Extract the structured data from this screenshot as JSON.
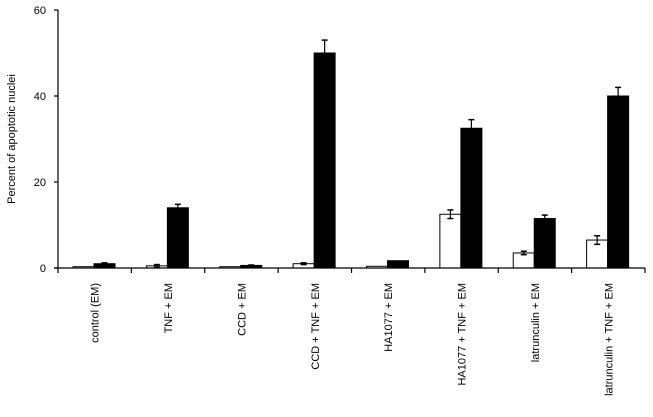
{
  "chart_data": {
    "type": "bar",
    "title": "",
    "xlabel": "",
    "ylabel": "Percent of apoptotic nuclei",
    "ylim": [
      0,
      60
    ],
    "yticks": [
      0,
      20,
      40,
      60
    ],
    "grid": false,
    "categories": [
      "control (EM)",
      "TNF + EM",
      "CCD + EM",
      "CCD + TNF + EM",
      "HA1077 + EM",
      "HA1077 + TNF + EM",
      "latrunculin + EM",
      "latrunculin + TNF + EM"
    ],
    "series": [
      {
        "color": "#ffffff",
        "values": [
          0.3,
          0.5,
          0.3,
          1.0,
          0.4,
          12.5,
          3.5,
          6.5
        ],
        "errors": [
          0,
          0.3,
          0,
          0.2,
          0,
          1.0,
          0.4,
          1.0
        ]
      },
      {
        "color": "#000000",
        "values": [
          1.0,
          14.0,
          0.6,
          50.0,
          1.7,
          32.5,
          11.5,
          40.0
        ],
        "errors": [
          0.2,
          0.8,
          0.1,
          3.0,
          0,
          2.0,
          0.8,
          2.0
        ]
      }
    ]
  }
}
